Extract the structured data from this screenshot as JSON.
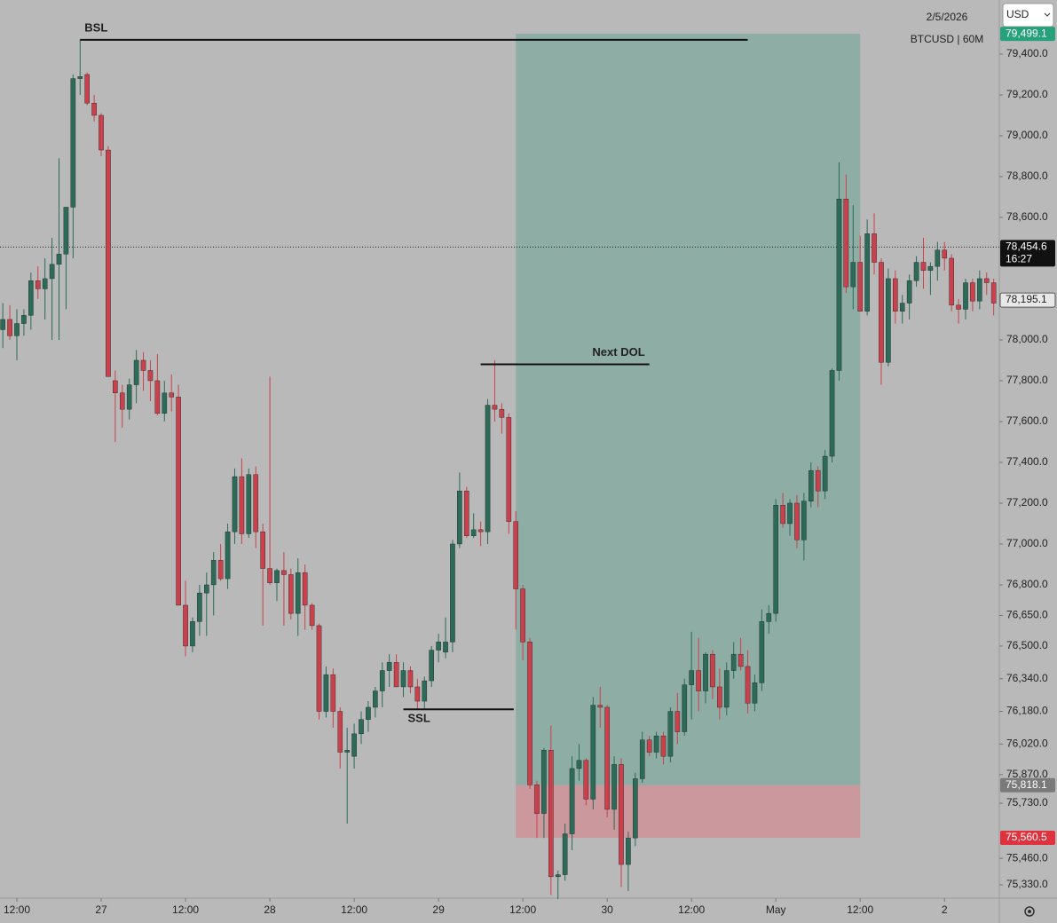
{
  "chart_data": {
    "type": "candlestick",
    "title": "BTCUSD | 60M",
    "date": "2/5/2026",
    "currency": "USD",
    "background": "#b9b9b9",
    "up_color": "#2b6b58",
    "down_color": "#c9414c",
    "xlim": [
      -2.4,
      139.8
    ],
    "ylim": [
      75265,
      79665
    ],
    "xticks": [
      {
        "value": 0,
        "label": "12:00"
      },
      {
        "value": 12,
        "label": "27"
      },
      {
        "value": 24,
        "label": "12:00"
      },
      {
        "value": 36,
        "label": "28"
      },
      {
        "value": 48,
        "label": "12:00"
      },
      {
        "value": 60,
        "label": "29"
      },
      {
        "value": 72,
        "label": "12:00"
      },
      {
        "value": 84,
        "label": "30"
      },
      {
        "value": 96,
        "label": "12:00"
      },
      {
        "value": 108,
        "label": "May"
      },
      {
        "value": 120,
        "label": "12:00"
      },
      {
        "value": 132,
        "label": "2"
      }
    ],
    "yticks": [
      {
        "value": 79400,
        "label": "79,400.0"
      },
      {
        "value": 79200,
        "label": "79,200.0"
      },
      {
        "value": 79000,
        "label": "79,000.0"
      },
      {
        "value": 78800,
        "label": "78,800.0"
      },
      {
        "value": 78600,
        "label": "78,600.0"
      },
      {
        "value": 78000,
        "label": "78,000.0"
      },
      {
        "value": 77800,
        "label": "77,800.0"
      },
      {
        "value": 77600,
        "label": "77,600.0"
      },
      {
        "value": 77400,
        "label": "77,400.0"
      },
      {
        "value": 77200,
        "label": "77,200.0"
      },
      {
        "value": 77000,
        "label": "77,000.0"
      },
      {
        "value": 76800,
        "label": "76,800.0"
      },
      {
        "value": 76650,
        "label": "76,650.0"
      },
      {
        "value": 76500,
        "label": "76,500.0"
      },
      {
        "value": 76340,
        "label": "76,340.0"
      },
      {
        "value": 76180,
        "label": "76,180.0"
      },
      {
        "value": 76020,
        "label": "76,020.0"
      },
      {
        "value": 75870,
        "label": "75,870.0"
      },
      {
        "value": 75730,
        "label": "75,730.0"
      },
      {
        "value": 75460,
        "label": "75,460.0"
      },
      {
        "value": 75330,
        "label": "75,330.0"
      }
    ],
    "x": [
      -2,
      -1,
      0,
      1,
      2,
      3,
      4,
      5,
      6,
      7,
      8,
      9,
      10,
      11,
      12,
      13,
      14,
      15,
      16,
      17,
      18,
      19,
      20,
      21,
      22,
      23,
      24,
      25,
      26,
      27,
      28,
      29,
      30,
      31,
      32,
      33,
      34,
      35,
      36,
      37,
      38,
      39,
      40,
      41,
      42,
      43,
      44,
      45,
      46,
      47,
      48,
      49,
      50,
      51,
      52,
      53,
      54,
      55,
      56,
      57,
      58,
      59,
      60,
      61,
      62,
      63,
      64,
      65,
      66,
      67,
      68,
      69,
      70,
      71,
      72,
      73,
      74,
      75,
      76,
      77,
      78,
      79,
      80,
      81,
      82,
      83,
      84,
      85,
      86,
      87,
      88,
      89,
      90,
      91,
      92,
      93,
      94,
      95,
      96,
      97,
      98,
      99,
      100,
      101,
      102,
      103,
      104,
      105,
      106,
      107,
      108,
      109,
      110,
      111,
      112,
      113,
      114,
      115,
      116,
      117,
      118,
      119,
      120,
      121,
      122,
      123,
      124,
      125,
      126,
      127,
      128,
      129,
      130,
      131,
      132,
      133,
      134,
      135,
      136,
      137,
      138,
      139
    ],
    "ohlc": [
      [
        78050,
        78180,
        77960,
        78100
      ],
      [
        78100,
        78170,
        78000,
        78020
      ],
      [
        78020,
        78150,
        77900,
        78080
      ],
      [
        78080,
        78150,
        78020,
        78120
      ],
      [
        78120,
        78330,
        78050,
        78290
      ],
      [
        78290,
        78360,
        78200,
        78250
      ],
      [
        78250,
        78400,
        78100,
        78300
      ],
      [
        78300,
        78500,
        78000,
        78370
      ],
      [
        78370,
        78890,
        78000,
        78420
      ],
      [
        78420,
        78620,
        78150,
        78650
      ],
      [
        78650,
        79300,
        78400,
        79280
      ],
      [
        79280,
        79470,
        79200,
        79290
      ],
      [
        79300,
        79310,
        79150,
        79160
      ],
      [
        79160,
        79200,
        79070,
        79100
      ],
      [
        79100,
        79110,
        78900,
        78930
      ],
      [
        78930,
        78950,
        77820,
        77820
      ],
      [
        77800,
        77850,
        77500,
        77740
      ],
      [
        77740,
        77780,
        77570,
        77660
      ],
      [
        77660,
        77810,
        77610,
        77780
      ],
      [
        77780,
        77950,
        77690,
        77900
      ],
      [
        77900,
        77940,
        77750,
        77850
      ],
      [
        77850,
        77900,
        77700,
        77800
      ],
      [
        77800,
        77930,
        77630,
        77640
      ],
      [
        77640,
        77800,
        77600,
        77740
      ],
      [
        77740,
        77830,
        77650,
        77720
      ],
      [
        77720,
        77780,
        76700,
        76700
      ],
      [
        76700,
        76820,
        76450,
        76500
      ],
      [
        76500,
        76640,
        76470,
        76620
      ],
      [
        76620,
        76800,
        76550,
        76760
      ],
      [
        76760,
        76860,
        76550,
        76800
      ],
      [
        76800,
        76960,
        76650,
        76920
      ],
      [
        76920,
        77000,
        76820,
        76830
      ],
      [
        76830,
        77100,
        76780,
        77060
      ],
      [
        77060,
        77370,
        77000,
        77330
      ],
      [
        77330,
        77420,
        77000,
        77050
      ],
      [
        77050,
        77370,
        77030,
        77340
      ],
      [
        77340,
        77380,
        76980,
        77060
      ],
      [
        77060,
        77100,
        76600,
        76880
      ],
      [
        76880,
        77820,
        76800,
        76810
      ],
      [
        76810,
        76880,
        76720,
        76870
      ],
      [
        76870,
        76960,
        76600,
        76850
      ],
      [
        76850,
        76880,
        76630,
        76660
      ],
      [
        76660,
        76930,
        76550,
        76860
      ],
      [
        76860,
        76900,
        76580,
        76700
      ],
      [
        76700,
        76710,
        76580,
        76600
      ],
      [
        76600,
        76610,
        76140,
        76180
      ],
      [
        76180,
        76400,
        76150,
        76360
      ],
      [
        76360,
        76390,
        76100,
        76180
      ],
      [
        76180,
        76200,
        75900,
        75980
      ],
      [
        75980,
        76100,
        75630,
        75990
      ],
      [
        75960,
        76120,
        75900,
        76070
      ],
      [
        76070,
        76180,
        76020,
        76140
      ],
      [
        76140,
        76230,
        76080,
        76200
      ],
      [
        76200,
        76300,
        76150,
        76280
      ],
      [
        76280,
        76420,
        76200,
        76380
      ],
      [
        76380,
        76460,
        76300,
        76420
      ],
      [
        76420,
        76460,
        76300,
        76300
      ],
      [
        76300,
        76420,
        76250,
        76380
      ],
      [
        76380,
        76400,
        76270,
        76300
      ],
      [
        76300,
        76340,
        76190,
        76230
      ],
      [
        76230,
        76350,
        76190,
        76330
      ],
      [
        76330,
        76500,
        76300,
        76480
      ],
      [
        76480,
        76560,
        76420,
        76520
      ],
      [
        76470,
        76640,
        76440,
        76520
      ],
      [
        76520,
        77020,
        76470,
        77000
      ],
      [
        77000,
        77350,
        76980,
        77260
      ],
      [
        77260,
        77280,
        77030,
        77040
      ],
      [
        77040,
        77150,
        77030,
        77070
      ],
      [
        77070,
        77110,
        76990,
        77060
      ],
      [
        77060,
        77710,
        77000,
        77680
      ],
      [
        77680,
        77900,
        77600,
        77660
      ],
      [
        77660,
        77690,
        77540,
        77620
      ],
      [
        77620,
        77640,
        77050,
        77110
      ],
      [
        77110,
        77160,
        76580,
        76780
      ],
      [
        76780,
        76800,
        76430,
        76520
      ],
      [
        76520,
        76540,
        75800,
        75820
      ],
      [
        75820,
        75840,
        75560,
        75680
      ],
      [
        75680,
        76000,
        75560,
        75990
      ],
      [
        75990,
        76110,
        75280,
        75370
      ],
      [
        75370,
        75400,
        75260,
        75380
      ],
      [
        75380,
        75630,
        75350,
        75580
      ],
      [
        75580,
        75960,
        75500,
        75900
      ],
      [
        75900,
        76020,
        75840,
        75940
      ],
      [
        75940,
        75950,
        75720,
        75750
      ],
      [
        75750,
        76250,
        75700,
        76210
      ],
      [
        76210,
        76300,
        76100,
        76200
      ],
      [
        76200,
        76210,
        75660,
        75700
      ],
      [
        75700,
        75960,
        75600,
        75920
      ],
      [
        75920,
        75950,
        75320,
        75430
      ],
      [
        75430,
        75590,
        75300,
        75560
      ],
      [
        75560,
        75880,
        75520,
        75850
      ],
      [
        75850,
        76080,
        75830,
        76040
      ],
      [
        76040,
        76060,
        75960,
        75980
      ],
      [
        75980,
        76080,
        75950,
        76060
      ],
      [
        76060,
        76080,
        75920,
        75960
      ],
      [
        75960,
        76200,
        75930,
        76180
      ],
      [
        76180,
        76270,
        76020,
        76080
      ],
      [
        76080,
        76340,
        76060,
        76310
      ],
      [
        76310,
        76570,
        76140,
        76380
      ],
      [
        76380,
        76540,
        76180,
        76280
      ],
      [
        76280,
        76470,
        76220,
        76460
      ],
      [
        76460,
        76480,
        76240,
        76300
      ],
      [
        76300,
        76390,
        76140,
        76200
      ],
      [
        76200,
        76420,
        76160,
        76380
      ],
      [
        76380,
        76520,
        76340,
        76460
      ],
      [
        76460,
        76540,
        76380,
        76400
      ],
      [
        76400,
        76480,
        76170,
        76220
      ],
      [
        76220,
        76360,
        76180,
        76320
      ],
      [
        76320,
        76680,
        76280,
        76620
      ],
      [
        76620,
        76700,
        76560,
        76660
      ],
      [
        76660,
        77220,
        76620,
        77190
      ],
      [
        77190,
        77250,
        77080,
        77100
      ],
      [
        77100,
        77220,
        77040,
        77200
      ],
      [
        77200,
        77240,
        76980,
        77020
      ],
      [
        77020,
        77250,
        76920,
        77210
      ],
      [
        77210,
        77400,
        77180,
        77360
      ],
      [
        77360,
        77380,
        77180,
        77260
      ],
      [
        77260,
        77460,
        77220,
        77430
      ],
      [
        77430,
        77860,
        77400,
        77850
      ],
      [
        77850,
        78870,
        77800,
        78690
      ],
      [
        78690,
        78810,
        78230,
        78260
      ],
      [
        78260,
        78660,
        78150,
        78380
      ],
      [
        78380,
        78510,
        78140,
        78140
      ],
      [
        78140,
        78590,
        78120,
        78520
      ],
      [
        78520,
        78620,
        78320,
        78380
      ],
      [
        78380,
        78400,
        77780,
        77890
      ],
      [
        77890,
        78350,
        77870,
        78300
      ],
      [
        78300,
        78340,
        78080,
        78140
      ],
      [
        78140,
        78220,
        78080,
        78180
      ],
      [
        78180,
        78320,
        78100,
        78290
      ],
      [
        78290,
        78410,
        78260,
        78380
      ],
      [
        78380,
        78500,
        78250,
        78340
      ],
      [
        78340,
        78380,
        78220,
        78360
      ],
      [
        78360,
        78480,
        78290,
        78440
      ],
      [
        78440,
        78480,
        78340,
        78400
      ],
      [
        78400,
        78420,
        78140,
        78170
      ],
      [
        78170,
        78200,
        78080,
        78150
      ],
      [
        78150,
        78300,
        78100,
        78280
      ],
      [
        78280,
        78300,
        78140,
        78190
      ],
      [
        78190,
        78340,
        78150,
        78300
      ],
      [
        78300,
        78330,
        78220,
        78280
      ],
      [
        78280,
        78300,
        78120,
        78180
      ]
    ],
    "levels": [
      {
        "label": "BSL",
        "value": 79470,
        "x": [
          9,
          104
        ]
      },
      {
        "label": "Next DOL",
        "value": 77880,
        "x": [
          66,
          90
        ]
      },
      {
        "label": "SSL",
        "value": 76190,
        "x": [
          55,
          70.7
        ]
      }
    ],
    "position": {
      "target": 79499.1,
      "entry": 75818.1,
      "stop": 75560.5,
      "x": [
        71,
        120
      ],
      "profit_color": "rgba(90,160,140,0.45)",
      "loss_color": "rgba(220,120,130,0.5)"
    },
    "price_tags": [
      {
        "value": 79499.1,
        "label": "79,499.1",
        "color": "#26a17b",
        "text_color": "#ffffff"
      },
      {
        "value": 78454.6,
        "label": "78,454.6",
        "sub": "16:27",
        "color": "#111111",
        "text_color": "#ffffff"
      },
      {
        "value": 78195.1,
        "label": "78,195.1",
        "color": "#e8e8e8",
        "text_color": "#222222"
      },
      {
        "value": 75818.1,
        "label": "75,818.1",
        "color": "#7a7a7a",
        "text_color": "#ffffff"
      },
      {
        "value": 75560.5,
        "label": "75,560.5",
        "color": "#e0313f",
        "text_color": "#ffffff"
      }
    ],
    "last_price_tag": 1
  }
}
